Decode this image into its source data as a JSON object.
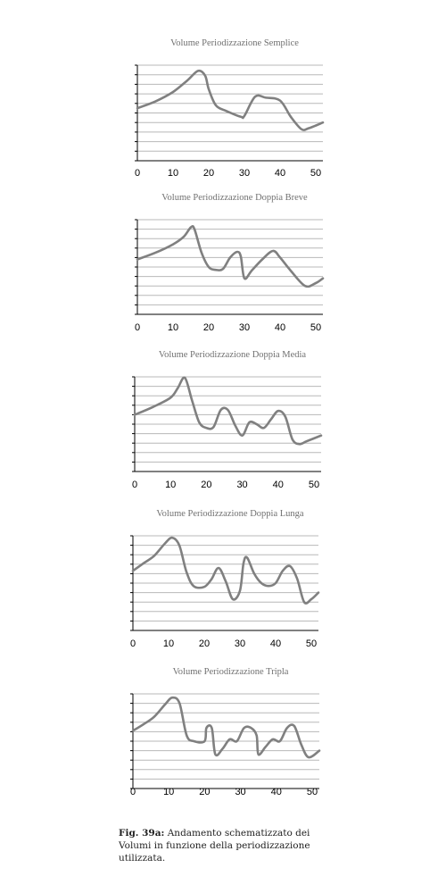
{
  "chart_data": [
    {
      "type": "line",
      "title": "Volume Periodizzazione Semplice",
      "xlim": [
        0,
        52
      ],
      "x_ticks": [
        0,
        10,
        20,
        30,
        40,
        50
      ],
      "ylim": [
        0,
        10
      ],
      "grid": true,
      "series": [
        {
          "x": [
            0,
            5,
            10,
            14,
            17,
            19,
            20,
            22,
            25,
            29,
            30,
            33,
            36,
            40,
            43,
            46,
            48,
            52
          ],
          "y": [
            5.5,
            6.2,
            7.2,
            8.4,
            9.4,
            8.9,
            7.5,
            5.8,
            5.2,
            4.6,
            4.7,
            6.7,
            6.6,
            6.3,
            4.6,
            3.3,
            3.4,
            4.0
          ]
        }
      ]
    },
    {
      "type": "line",
      "title": "Volume Periodizzazione Doppia Breve",
      "xlim": [
        0,
        52
      ],
      "x_ticks": [
        0,
        10,
        20,
        30,
        40,
        50
      ],
      "ylim": [
        0,
        10
      ],
      "grid": true,
      "series": [
        {
          "x": [
            0,
            5,
            10,
            13,
            15,
            16,
            18,
            20,
            22,
            24,
            26,
            28,
            29,
            30,
            32,
            35,
            38,
            40,
            43,
            47,
            50,
            52
          ],
          "y": [
            5.8,
            6.5,
            7.4,
            8.2,
            9.2,
            9.0,
            6.5,
            5.0,
            4.7,
            4.8,
            6.0,
            6.6,
            6.1,
            3.8,
            4.6,
            5.8,
            6.7,
            6.0,
            4.6,
            3.0,
            3.3,
            3.8
          ]
        }
      ]
    },
    {
      "type": "line",
      "title": "Volume Periodizzazione Doppia Media",
      "xlim": [
        0,
        52
      ],
      "x_ticks": [
        0,
        10,
        20,
        30,
        40,
        50
      ],
      "ylim": [
        0,
        10
      ],
      "grid": true,
      "series": [
        {
          "x": [
            0,
            5,
            10,
            12,
            14,
            16,
            18,
            20,
            22,
            24,
            26,
            28,
            30,
            32,
            34,
            36,
            38,
            40,
            42,
            44,
            46,
            48,
            52
          ],
          "y": [
            6.0,
            6.8,
            7.8,
            8.8,
            9.9,
            7.5,
            5.2,
            4.6,
            4.7,
            6.5,
            6.5,
            4.9,
            3.8,
            5.2,
            5.0,
            4.6,
            5.5,
            6.4,
            5.8,
            3.4,
            2.9,
            3.2,
            3.8
          ]
        }
      ]
    },
    {
      "type": "line",
      "title": "Volume Periodizzazione Doppia Lunga",
      "xlim": [
        0,
        52
      ],
      "x_ticks": [
        0,
        10,
        20,
        30,
        40,
        50
      ],
      "ylim": [
        0,
        10
      ],
      "grid": true,
      "series": [
        {
          "x": [
            0,
            3,
            6,
            9,
            11,
            13,
            15,
            17,
            20,
            22,
            24,
            26,
            28,
            30,
            31,
            32,
            34,
            36,
            38,
            40,
            42,
            44,
            46,
            48,
            50,
            52
          ],
          "y": [
            6.3,
            7.1,
            7.9,
            9.2,
            9.8,
            9.0,
            6.2,
            4.7,
            4.6,
            5.4,
            6.6,
            5.2,
            3.3,
            4.2,
            7.1,
            7.7,
            6.0,
            5.0,
            4.7,
            5.0,
            6.3,
            6.8,
            5.5,
            3.0,
            3.3,
            4.0
          ]
        }
      ]
    },
    {
      "type": "line",
      "title": "Volume Periodizzazione Tripla",
      "xlim": [
        0,
        52
      ],
      "x_ticks": [
        0,
        10,
        20,
        30,
        40,
        50
      ],
      "ylim": [
        0,
        10
      ],
      "grid": true,
      "series": [
        {
          "x": [
            0,
            3,
            6,
            9,
            11,
            13,
            15,
            17,
            20,
            20.5,
            22,
            23,
            25,
            27,
            29,
            31,
            33,
            34.5,
            35,
            37,
            39,
            41,
            43,
            45,
            47,
            49,
            52
          ],
          "y": [
            6.1,
            6.8,
            7.6,
            8.9,
            9.6,
            9.0,
            5.6,
            5.0,
            5.0,
            6.4,
            6.4,
            3.6,
            4.2,
            5.2,
            5.0,
            6.4,
            6.4,
            5.6,
            3.6,
            4.4,
            5.2,
            5.0,
            6.4,
            6.6,
            4.6,
            3.3,
            4.0
          ]
        }
      ]
    }
  ],
  "caption": {
    "label": "Fig. 39a:",
    "text": " Andamento schematizzato dei Volumi in funzione della periodizzazione utilizzata."
  },
  "colors": {
    "line": "#808080",
    "grid": "#b8b8b8",
    "axis": "#000000",
    "title": "#707070"
  }
}
